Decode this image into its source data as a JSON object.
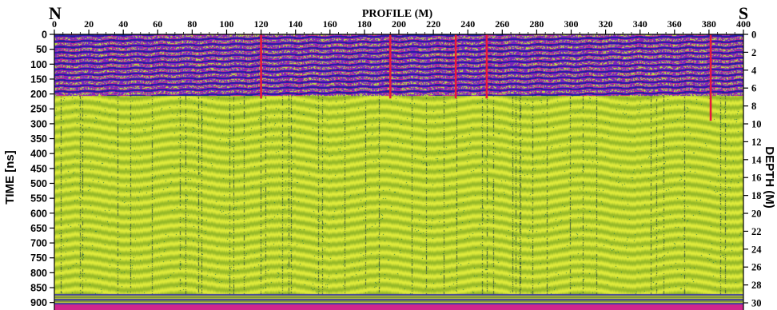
{
  "chart_data": {
    "type": "heatmap",
    "title": "PROFILE (M)",
    "left_end_label": "N",
    "right_end_label": "S",
    "xlabel": "PROFILE (M)",
    "ylabel": "TIME [ns]",
    "y2label": "DEPTH (M)",
    "xlim": [
      0,
      400
    ],
    "ylim": [
      0,
      925
    ],
    "y2lim": [
      0,
      30.8
    ],
    "x_ticks": [
      0,
      20,
      40,
      60,
      80,
      100,
      120,
      140,
      160,
      180,
      200,
      220,
      240,
      260,
      280,
      300,
      320,
      340,
      360,
      380,
      400
    ],
    "y_ticks": [
      0,
      50,
      100,
      150,
      200,
      250,
      300,
      350,
      400,
      450,
      500,
      550,
      600,
      650,
      700,
      750,
      800,
      850,
      900
    ],
    "y2_ticks": [
      0,
      2,
      4,
      6,
      8,
      10,
      12,
      14,
      16,
      18,
      20,
      22,
      24,
      26,
      28,
      30
    ],
    "section_markers_m": [
      120,
      195,
      233,
      251,
      381
    ],
    "marker_color": "#e8183c",
    "colors": {
      "background_fill": "#d6e62e",
      "upper_band_purple": "#8a1fc8",
      "upper_band_magenta": "#d0258e",
      "upper_band_blue": "#1b1fa0",
      "bottom_band": "#d0258e"
    }
  }
}
